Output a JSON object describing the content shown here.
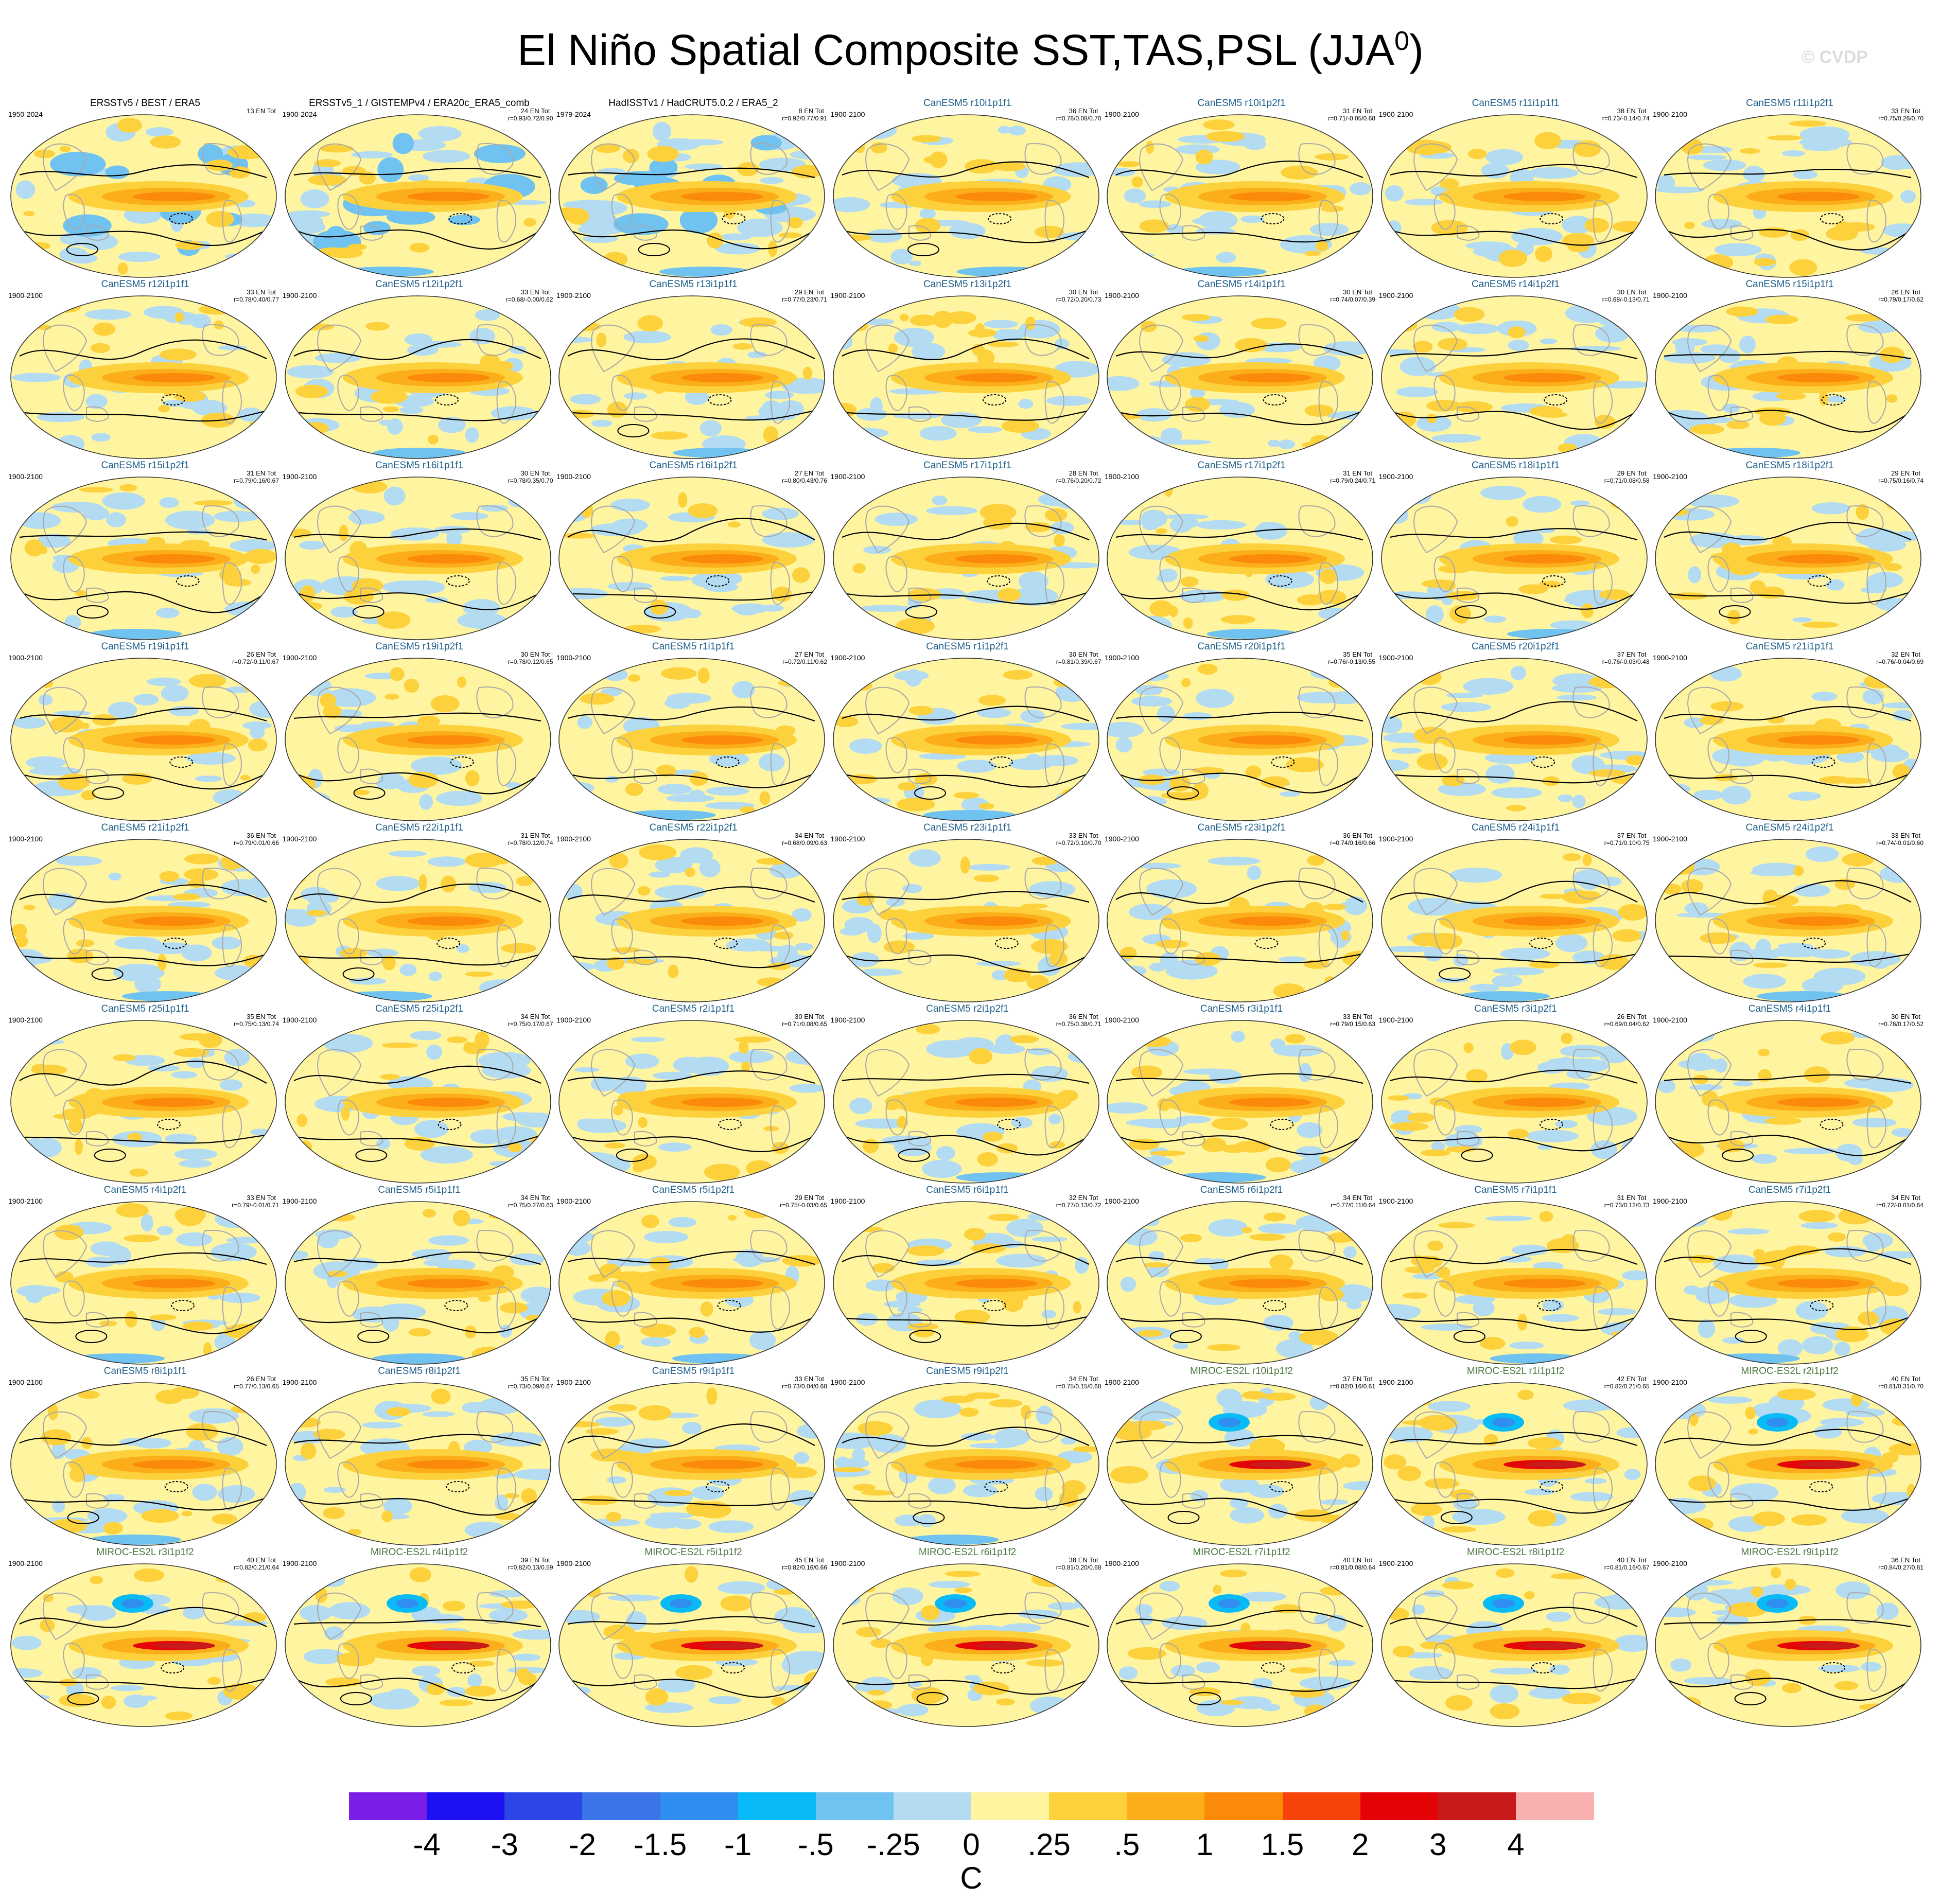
{
  "title": {
    "main": "El Niño Spatial Composite SST,TAS,PSL (JJA",
    "superscript": "0",
    "close": ")"
  },
  "watermark": "© CVDP",
  "colors": {
    "levels": [
      "#7a1ee8",
      "#1d10f3",
      "#2c45e4",
      "#3a74e6",
      "#2f8ef0",
      "#08baf5",
      "#70c3f1",
      "#b3dcf3",
      "#fff5a0",
      "#fdd13c",
      "#fcad1a",
      "#fb8a0b",
      "#f6430a",
      "#e40307",
      "#c81a1a",
      "#f9b0b0"
    ],
    "contour": "#000000",
    "coast": "#a8a8a8",
    "obs_title": "#000000",
    "canesm_title": "#1f5f8a",
    "miroc_title": "#4a7a40"
  },
  "chart_data": {
    "type": "heatmap",
    "title": "El Niño Spatial Composite SST,TAS,PSL (JJA0)",
    "colorbar": {
      "units": "C",
      "tick_labels": [
        "-4",
        "-3",
        "-2",
        "-1.5",
        "-1",
        "-.5",
        "-.25",
        "0",
        ".25",
        ".5",
        "1",
        "1.5",
        "2",
        "3",
        "4"
      ],
      "levels": [
        -4,
        -3,
        -2,
        -1.5,
        -1,
        -0.5,
        -0.25,
        0,
        0.25,
        0.5,
        1,
        1.5,
        2,
        3,
        4
      ]
    },
    "panels": [
      {
        "title": "ERSSTv5 / BEST / ERA5",
        "years": "1950-2024",
        "count": "13 EN Tot",
        "stats": "",
        "group": "obs",
        "dash": "none"
      },
      {
        "title": "ERSSTv5_1 / GISTEMPv4 / ERA20c_ERA5_comb",
        "years": "1900-2024",
        "count": "24 EN Tot",
        "stats": "r=0.93/0.72/0.90",
        "group": "obs",
        "dash": "none"
      },
      {
        "title": "HadISSTv1 / HadCRUT5.0.2 / ERA5_2",
        "years": "1979-2024",
        "count": "8 EN Tot",
        "stats": "r=0.92/0.77/0.91",
        "group": "obs",
        "dash": "none"
      },
      {
        "title": "CanESM5 r10i1p1f1",
        "years": "1900-2100",
        "count": "36 EN Tot",
        "stats": "r=0.76/0.08/0.70",
        "group": "canesm",
        "dash": "none"
      },
      {
        "title": "CanESM5 r10i1p2f1",
        "years": "1900-2100",
        "count": "31 EN Tot",
        "stats": "r=0.71/-0.05/0.68",
        "group": "canesm",
        "dash": "none"
      },
      {
        "title": "CanESM5 r11i1p1f1",
        "years": "1900-2100",
        "count": "38 EN Tot",
        "stats": "r=0.73/-0.14/0.74",
        "group": "canesm",
        "dash": "none"
      },
      {
        "title": "CanESM5 r11i1p2f1",
        "years": "1900-2100",
        "count": "33 EN Tot",
        "stats": "r=0.75/0.26/0.70",
        "group": "canesm",
        "dash": "none"
      },
      {
        "title": "CanESM5 r12i1p1f1",
        "years": "1900-2100",
        "count": "33 EN Tot",
        "stats": "r=0.78/0.40/0.77",
        "group": "canesm",
        "dash": "none"
      },
      {
        "title": "CanESM5 r12i1p2f1",
        "years": "1900-2100",
        "count": "33 EN Tot",
        "stats": "r=0.68/-0.00/0.62",
        "group": "canesm",
        "dash": "none"
      },
      {
        "title": "CanESM5 r13i1p1f1",
        "years": "1900-2100",
        "count": "29 EN Tot",
        "stats": "r=0.77/0.23/0.71",
        "group": "canesm",
        "dash": "none"
      },
      {
        "title": "CanESM5 r13i1p2f1",
        "years": "1900-2100",
        "count": "30 EN Tot",
        "stats": "r=0.72/0.20/0.73",
        "group": "canesm",
        "dash": "none"
      },
      {
        "title": "CanESM5 r14i1p1f1",
        "years": "1900-2100",
        "count": "30 EN Tot",
        "stats": "r=0.74/0.07/0.39",
        "group": "canesm",
        "dash": "none"
      },
      {
        "title": "CanESM5 r14i1p2f1",
        "years": "1900-2100",
        "count": "30 EN Tot",
        "stats": "r=0.68/-0.13/0.71",
        "group": "canesm",
        "dash": "none"
      },
      {
        "title": "CanESM5 r15i1p1f1",
        "years": "1900-2100",
        "count": "26 EN Tot",
        "stats": "r=0.79/0.17/0.62",
        "group": "canesm",
        "dash": "none"
      },
      {
        "title": "CanESM5 r15i1p2f1",
        "years": "1900-2100",
        "count": "31 EN Tot",
        "stats": "r=0.79/0.16/0.67",
        "group": "canesm",
        "dash": "none"
      },
      {
        "title": "CanESM5 r16i1p1f1",
        "years": "1900-2100",
        "count": "30 EN Tot",
        "stats": "r=0.78/0.35/0.70",
        "group": "canesm",
        "dash": "none"
      },
      {
        "title": "CanESM5 r16i1p2f1",
        "years": "1900-2100",
        "count": "27 EN Tot",
        "stats": "r=0.80/0.43/0.76",
        "group": "canesm",
        "dash": "none"
      },
      {
        "title": "CanESM5 r17i1p1f1",
        "years": "1900-2100",
        "count": "28 EN Tot",
        "stats": "r=0.76/0.20/0.72",
        "group": "canesm",
        "dash": "none"
      },
      {
        "title": "CanESM5 r17i1p2f1",
        "years": "1900-2100",
        "count": "31 EN Tot",
        "stats": "r=0.79/0.24/0.71",
        "group": "canesm",
        "dash": "none"
      },
      {
        "title": "CanESM5 r18i1p1f1",
        "years": "1900-2100",
        "count": "29 EN Tot",
        "stats": "r=0.71/0.08/0.58",
        "group": "canesm",
        "dash": "none"
      },
      {
        "title": "CanESM5 r18i1p2f1",
        "years": "1900-2100",
        "count": "29 EN Tot",
        "stats": "r=0.75/0.16/0.74",
        "group": "canesm",
        "dash": "none"
      },
      {
        "title": "CanESM5 r19i1p1f1",
        "years": "1900-2100",
        "count": "26 EN Tot",
        "stats": "r=0.72/-0.11/0.67",
        "group": "canesm",
        "dash": "none"
      },
      {
        "title": "CanESM5 r19i1p2f1",
        "years": "1900-2100",
        "count": "30 EN Tot",
        "stats": "r=0.78/0.12/0.65",
        "group": "canesm",
        "dash": "none"
      },
      {
        "title": "CanESM5 r1i1p1f1",
        "years": "1900-2100",
        "count": "27 EN Tot",
        "stats": "r=0.72/0.11/0.62",
        "group": "canesm",
        "dash": "none"
      },
      {
        "title": "CanESM5 r1i1p2f1",
        "years": "1900-2100",
        "count": "30 EN Tot",
        "stats": "r=0.81/0.39/0.67",
        "group": "canesm",
        "dash": "none"
      },
      {
        "title": "CanESM5 r20i1p1f1",
        "years": "1900-2100",
        "count": "35 EN Tot",
        "stats": "r=0.76/-0.13/0.55",
        "group": "canesm",
        "dash": "none"
      },
      {
        "title": "CanESM5 r20i1p2f1",
        "years": "1900-2100",
        "count": "37 EN Tot",
        "stats": "r=0.76/-0.03/0.48",
        "group": "canesm",
        "dash": "none"
      },
      {
        "title": "CanESM5 r21i1p1f1",
        "years": "1900-2100",
        "count": "32 EN Tot",
        "stats": "r=0.76/-0.04/0.69",
        "group": "canesm",
        "dash": "none"
      },
      {
        "title": "CanESM5 r21i1p2f1",
        "years": "1900-2100",
        "count": "36 EN Tot",
        "stats": "r=0.79/0.01/0.66",
        "group": "canesm",
        "dash": "none"
      },
      {
        "title": "CanESM5 r22i1p1f1",
        "years": "1900-2100",
        "count": "31 EN Tot",
        "stats": "r=0.78/0.12/0.74",
        "group": "canesm",
        "dash": "none"
      },
      {
        "title": "CanESM5 r22i1p2f1",
        "years": "1900-2100",
        "count": "34 EN Tot",
        "stats": "r=0.68/0.09/0.63",
        "group": "canesm",
        "dash": "none"
      },
      {
        "title": "CanESM5 r23i1p1f1",
        "years": "1900-2100",
        "count": "33 EN Tot",
        "stats": "r=0.72/0.10/0.70",
        "group": "canesm",
        "dash": "none"
      },
      {
        "title": "CanESM5 r23i1p2f1",
        "years": "1900-2100",
        "count": "36 EN Tot",
        "stats": "r=0.74/0.16/0.66",
        "group": "canesm",
        "dash": "none"
      },
      {
        "title": "CanESM5 r24i1p1f1",
        "years": "1900-2100",
        "count": "37 EN Tot",
        "stats": "r=0.71/0.10/0.75",
        "group": "canesm",
        "dash": "none"
      },
      {
        "title": "CanESM5 r24i1p2f1",
        "years": "1900-2100",
        "count": "33 EN Tot",
        "stats": "r=0.74/-0.01/0.60",
        "group": "canesm",
        "dash": "none"
      },
      {
        "title": "CanESM5 r25i1p1f1",
        "years": "1900-2100",
        "count": "35 EN Tot",
        "stats": "r=0.75/0.13/0.74",
        "group": "canesm",
        "dash": "none"
      },
      {
        "title": "CanESM5 r25i1p2f1",
        "years": "1900-2100",
        "count": "34 EN Tot",
        "stats": "r=0.75/0.17/0.67",
        "group": "canesm",
        "dash": "none"
      },
      {
        "title": "CanESM5 r2i1p1f1",
        "years": "1900-2100",
        "count": "30 EN Tot",
        "stats": "r=0.71/0.08/0.65",
        "group": "canesm",
        "dash": "none"
      },
      {
        "title": "CanESM5 r2i1p2f1",
        "years": "1900-2100",
        "count": "36 EN Tot",
        "stats": "r=0.75/0.38/0.71",
        "group": "canesm",
        "dash": "none"
      },
      {
        "title": "CanESM5 r3i1p1f1",
        "years": "1900-2100",
        "count": "33 EN Tot",
        "stats": "r=0.79/0.15/0.63",
        "group": "canesm",
        "dash": "none"
      },
      {
        "title": "CanESM5 r3i1p2f1",
        "years": "1900-2100",
        "count": "26 EN Tot",
        "stats": "r=0.69/0.04/0.62",
        "group": "canesm",
        "dash": "none"
      },
      {
        "title": "CanESM5 r4i1p1f1",
        "years": "1900-2100",
        "count": "30 EN Tot",
        "stats": "r=0.78/0.17/0.52",
        "group": "canesm",
        "dash": "none"
      },
      {
        "title": "CanESM5 r4i1p2f1",
        "years": "1900-2100",
        "count": "33 EN Tot",
        "stats": "r=0.79/-0.01/0.71",
        "group": "canesm",
        "dash": "none"
      },
      {
        "title": "CanESM5 r5i1p1f1",
        "years": "1900-2100",
        "count": "34 EN Tot",
        "stats": "r=0.75/0.27/0.63",
        "group": "canesm",
        "dash": "none"
      },
      {
        "title": "CanESM5 r5i1p2f1",
        "years": "1900-2100",
        "count": "29 EN Tot",
        "stats": "r=0.75/-0.03/0.65",
        "group": "canesm",
        "dash": "none"
      },
      {
        "title": "CanESM5 r6i1p1f1",
        "years": "1900-2100",
        "count": "32 EN Tot",
        "stats": "r=0.77/0.13/0.72",
        "group": "canesm",
        "dash": "none"
      },
      {
        "title": "CanESM5 r6i1p2f1",
        "years": "1900-2100",
        "count": "34 EN Tot",
        "stats": "r=0.77/0.11/0.64",
        "group": "canesm",
        "dash": "none"
      },
      {
        "title": "CanESM5 r7i1p1f1",
        "years": "1900-2100",
        "count": "31 EN Tot",
        "stats": "r=0.73/0.12/0.73",
        "group": "canesm",
        "dash": "none"
      },
      {
        "title": "CanESM5 r7i1p2f1",
        "years": "1900-2100",
        "count": "34 EN Tot",
        "stats": "r=0.72/-0.01/0.64",
        "group": "canesm",
        "dash": "none"
      },
      {
        "title": "CanESM5 r8i1p1f1",
        "years": "1900-2100",
        "count": "26 EN Tot",
        "stats": "r=0.77/0.13/0.65",
        "group": "canesm",
        "dash": "none"
      },
      {
        "title": "CanESM5 r8i1p2f1",
        "years": "1900-2100",
        "count": "35 EN Tot",
        "stats": "r=0.73/0.09/0.67",
        "group": "canesm",
        "dash": "none"
      },
      {
        "title": "CanESM5 r9i1p1f1",
        "years": "1900-2100",
        "count": "33 EN Tot",
        "stats": "r=0.73/0.04/0.68",
        "group": "canesm",
        "dash": "none"
      },
      {
        "title": "CanESM5 r9i1p2f1",
        "years": "1900-2100",
        "count": "34 EN Tot",
        "stats": "r=0.75/0.15/0.68",
        "group": "canesm",
        "dash": "none"
      },
      {
        "title": "MIROC-ES2L r10i1p1f2",
        "years": "1900-2100",
        "count": "37 EN Tot",
        "stats": "r=0.82/0.16/0.61",
        "group": "miroc",
        "dash": "none"
      },
      {
        "title": "MIROC-ES2L r1i1p1f2",
        "years": "1900-2100",
        "count": "42 EN Tot",
        "stats": "r=0.82/0.21/0.65",
        "group": "miroc",
        "dash": "none"
      },
      {
        "title": "MIROC-ES2L r2i1p1f2",
        "years": "1900-2100",
        "count": "40 EN Tot",
        "stats": "r=0.81/0.31/0.70",
        "group": "miroc",
        "dash": "none"
      },
      {
        "title": "MIROC-ES2L r3i1p1f2",
        "years": "1900-2100",
        "count": "40 EN Tot",
        "stats": "r=0.82/0.21/0.64",
        "group": "miroc",
        "dash": "none"
      },
      {
        "title": "MIROC-ES2L r4i1p1f2",
        "years": "1900-2100",
        "count": "39 EN Tot",
        "stats": "r=0.82/0.13/0.59",
        "group": "miroc",
        "dash": "none"
      },
      {
        "title": "MIROC-ES2L r5i1p1f2",
        "years": "1900-2100",
        "count": "45 EN Tot",
        "stats": "r=0.82/0.16/0.66",
        "group": "miroc",
        "dash": "none"
      },
      {
        "title": "MIROC-ES2L r6i1p1f2",
        "years": "1900-2100",
        "count": "38 EN Tot",
        "stats": "r=0.81/0.20/0.68",
        "group": "miroc",
        "dash": "none"
      },
      {
        "title": "MIROC-ES2L r7i1p1f2",
        "years": "1900-2100",
        "count": "40 EN Tot",
        "stats": "r=0.81/0.08/0.64",
        "group": "miroc",
        "dash": "none"
      },
      {
        "title": "MIROC-ES2L r8i1p1f2",
        "years": "1900-2100",
        "count": "40 EN Tot",
        "stats": "r=0.81/0.16/0.67",
        "group": "miroc",
        "dash": "none"
      },
      {
        "title": "MIROC-ES2L r9i1p1f2",
        "years": "1900-2100",
        "count": "36 EN Tot",
        "stats": "r=0.84/0.27/0.81",
        "group": "miroc",
        "dash": "none"
      }
    ]
  }
}
